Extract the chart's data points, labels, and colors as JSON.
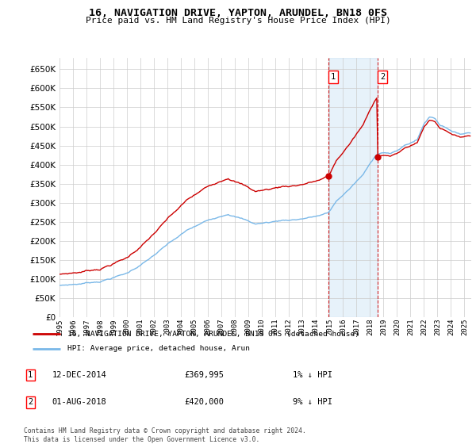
{
  "title": "16, NAVIGATION DRIVE, YAPTON, ARUNDEL, BN18 0FS",
  "subtitle": "Price paid vs. HM Land Registry's House Price Index (HPI)",
  "yticks": [
    0,
    50000,
    100000,
    150000,
    200000,
    250000,
    300000,
    350000,
    400000,
    450000,
    500000,
    550000,
    600000,
    650000
  ],
  "ylim": [
    0,
    680000
  ],
  "sale1_year": 2014.9167,
  "sale1_price": 369995,
  "sale2_year": 2018.5833,
  "sale2_price": 420000,
  "legend_label1": "16, NAVIGATION DRIVE, YAPTON, ARUNDEL, BN18 0FS (detached house)",
  "legend_label2": "HPI: Average price, detached house, Arun",
  "footer1": "Contains HM Land Registry data © Crown copyright and database right 2024.",
  "footer2": "This data is licensed under the Open Government Licence v3.0.",
  "hpi_color": "#7ab8e8",
  "price_color": "#cc0000",
  "bg_color": "#ffffff",
  "grid_color": "#cccccc",
  "vline_color": "#cc0000",
  "highlight_color": "#ddeeff",
  "xlim_left": 1995.0,
  "xlim_right": 2025.5
}
